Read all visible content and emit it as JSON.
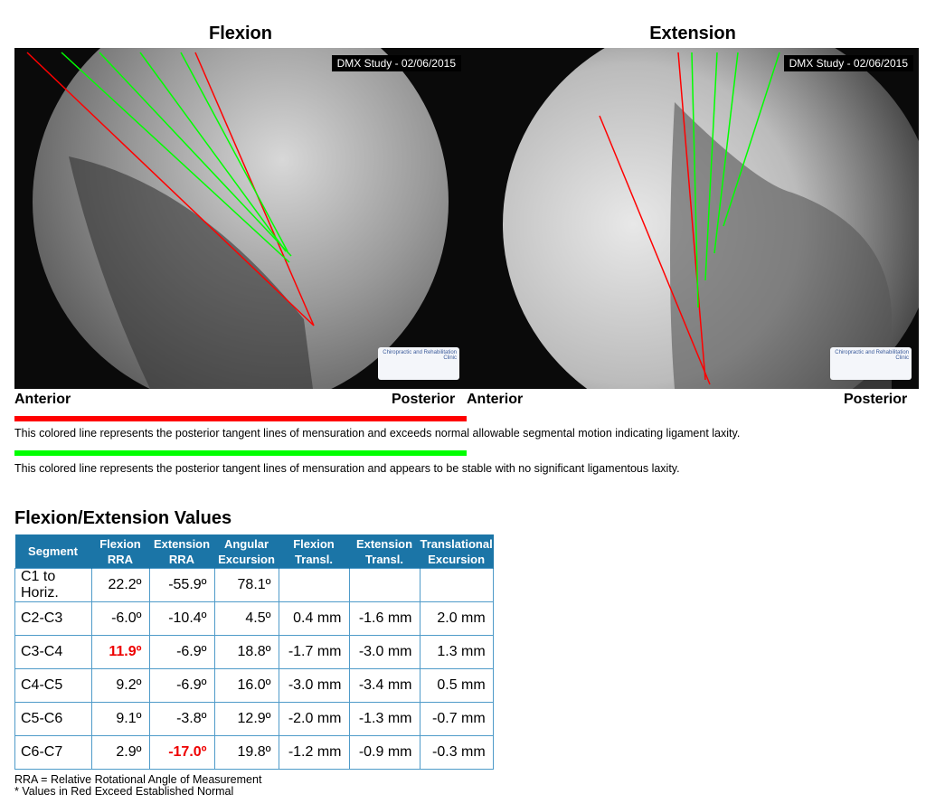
{
  "panels": [
    {
      "title": "Flexion",
      "stamp": "DMX Study - 02/06/2015",
      "logo": "Chiropractic and Rehabilitation Clinic",
      "left_label": "Anterior",
      "right_label": "Posterior"
    },
    {
      "title": "Extension",
      "stamp": "DMX Study - 02/06/2015",
      "logo": "Chiropractic and Rehabilitation Clinic",
      "left_label": "Anterior",
      "right_label": "Posterior"
    }
  ],
  "legend": {
    "red_color": "#ff0000",
    "red_text": "This colored line represents the posterior tangent lines of mensuration  and exceeds normal allowable segmental motion indicating ligament laxity.",
    "green_color": "#00ff00",
    "green_text": "This colored line represents the posterior tangent lines of mensuration and appears to be stable with no significant ligamentous laxity."
  },
  "table": {
    "title": "Flexion/Extension Values",
    "headers": [
      [
        "Segment",
        ""
      ],
      [
        "Flexion",
        "RRA"
      ],
      [
        "Extension",
        "RRA"
      ],
      [
        "Angular",
        "Excursion"
      ],
      [
        "Flexion",
        "Transl."
      ],
      [
        "Extension",
        "Transl."
      ],
      [
        "Translational",
        "Excursion"
      ]
    ],
    "rows": [
      {
        "cells": [
          "C1 to Horiz.",
          "22.2º",
          "-55.9º",
          "78.1º",
          "",
          "",
          ""
        ],
        "red": []
      },
      {
        "cells": [
          "C2-C3",
          "-6.0º",
          "-10.4º",
          "4.5º",
          "0.4 mm",
          "-1.6 mm",
          "2.0 mm"
        ],
        "red": []
      },
      {
        "cells": [
          "C3-C4",
          "11.9º",
          "-6.9º",
          "18.8º",
          "-1.7 mm",
          "-3.0 mm",
          "1.3 mm"
        ],
        "red": [
          1
        ]
      },
      {
        "cells": [
          "C4-C5",
          "9.2º",
          "-6.9º",
          "16.0º",
          "-3.0 mm",
          "-3.4 mm",
          "0.5 mm"
        ],
        "red": []
      },
      {
        "cells": [
          "C5-C6",
          "9.1º",
          "-3.8º",
          "12.9º",
          "-2.0 mm",
          "-1.3 mm",
          "-0.7 mm"
        ],
        "red": []
      },
      {
        "cells": [
          "C6-C7",
          "2.9º",
          "-17.0º",
          "19.8º",
          "-1.2 mm",
          "-0.9 mm",
          "-0.3 mm"
        ],
        "red": [
          2
        ]
      }
    ],
    "footnotes": [
      "RRA = Relative Rotational Angle of Measurement",
      "* Values in Red Exceed Established Normal"
    ]
  }
}
